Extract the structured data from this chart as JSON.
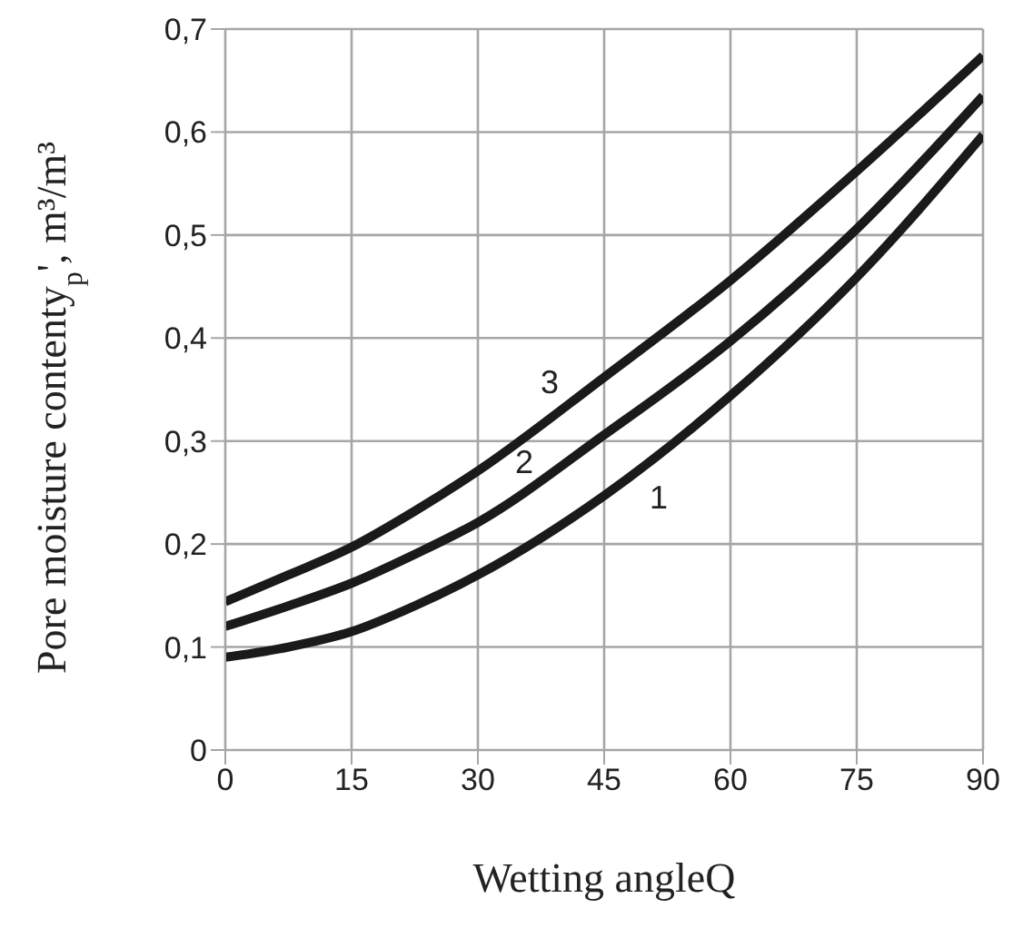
{
  "chart_data": {
    "type": "line",
    "xlabel": "Wetting angleQ",
    "ylabel": "Pore moisture contenty$_{p}$', m³/m³",
    "x": [
      0,
      7.5,
      15,
      22.5,
      30,
      45,
      60,
      75,
      90
    ],
    "series": [
      {
        "name": "1",
        "color": "#1a1a1a",
        "values": [
          0.09,
          0.1,
          0.115,
          0.14,
          0.17,
          0.247,
          0.344,
          0.459,
          0.597
        ]
      },
      {
        "name": "2",
        "color": "#1a1a1a",
        "values": [
          0.12,
          0.14,
          0.162,
          0.19,
          0.221,
          0.306,
          0.397,
          0.506,
          0.635
        ]
      },
      {
        "name": "3",
        "color": "#1a1a1a",
        "values": [
          0.144,
          0.17,
          0.197,
          0.232,
          0.271,
          0.362,
          0.456,
          0.562,
          0.674
        ]
      }
    ],
    "xlim": [
      0,
      90
    ],
    "xticks": [
      0,
      15,
      30,
      45,
      60,
      75,
      90
    ],
    "ylim": [
      0,
      0.7
    ],
    "yticks": [
      0,
      {
        "value": 0.1,
        "label": "0,1"
      },
      {
        "value": 0.2,
        "label": "0,2"
      },
      {
        "value": 0.3,
        "label": "0,3"
      },
      {
        "value": 0.4,
        "label": "0,4"
      },
      {
        "value": 0.5,
        "label": "0,5"
      },
      {
        "value": 0.6,
        "label": "0,6"
      },
      {
        "value": 0.7,
        "label": "0,7"
      }
    ],
    "grid": true,
    "marker": "none",
    "line_style": "solid"
  }
}
